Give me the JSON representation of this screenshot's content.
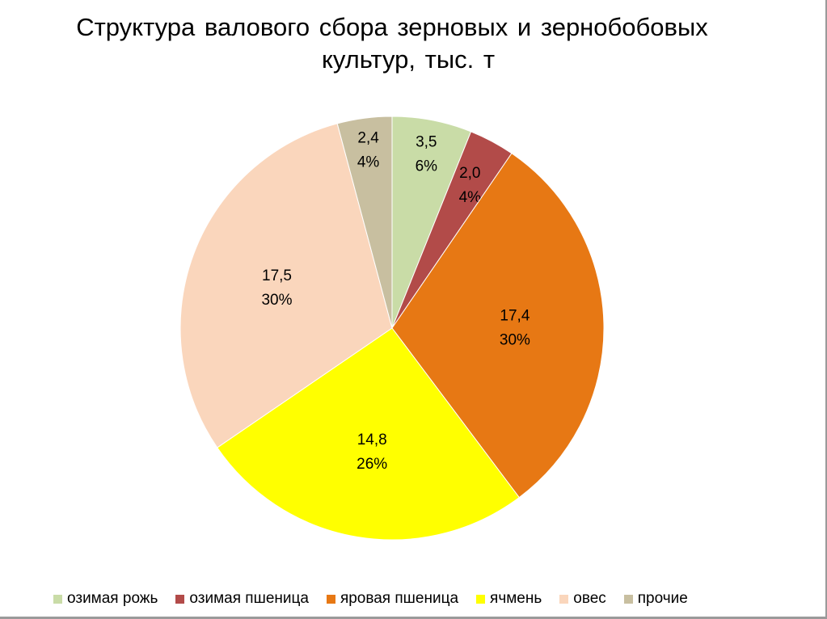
{
  "chart_data": {
    "type": "pie",
    "title": "Структура валового сбора зерновых и зернобобовых культур, тыс. т",
    "title_lines": [
      "Структура валового сбора зерновых и зернобобовых",
      "культур, тыс. т"
    ],
    "legend_position": "bottom",
    "slices": [
      {
        "name": "озимая рожь",
        "value": 3.5,
        "value_label": "3,5",
        "percent_label": "6%",
        "color": "#C9DCA7"
      },
      {
        "name": "озимая пшеница",
        "value": 2.0,
        "value_label": "2,0",
        "percent_label": "4%",
        "color": "#B24B49"
      },
      {
        "name": "яровая пшеница",
        "value": 17.4,
        "value_label": "17,4",
        "percent_label": "30%",
        "color": "#E77814"
      },
      {
        "name": "ячмень",
        "value": 14.8,
        "value_label": "14,8",
        "percent_label": "26%",
        "color": "#FFFF00"
      },
      {
        "name": "овес",
        "value": 17.5,
        "value_label": "17,5",
        "percent_label": "30%",
        "color": "#FAD6BC"
      },
      {
        "name": "прочие",
        "value": 2.4,
        "value_label": "2,4",
        "percent_label": "4%",
        "color": "#C8BFA0"
      }
    ]
  }
}
